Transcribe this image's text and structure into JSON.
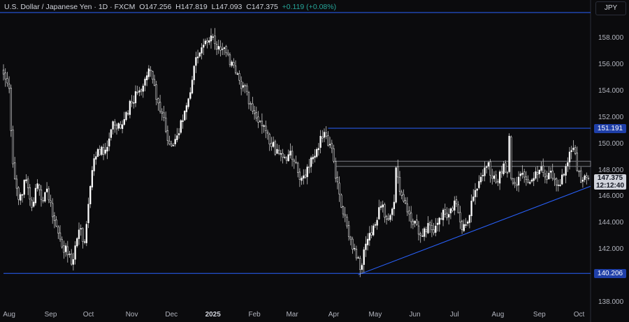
{
  "header": {
    "symbol": "U.S. Dollar / Japanese Yen · 1D · FXCM",
    "o_label": "O",
    "o_value": "147.256",
    "h_label": "H",
    "h_value": "147.819",
    "l_label": "L",
    "l_value": "147.093",
    "c_label": "C",
    "c_value": "147.375",
    "change": "+0.119 (+0.08%)"
  },
  "currency_button": "JPY",
  "colors": {
    "up": "#ffffff",
    "down": "#ffffff",
    "level_line": "#2962ff",
    "zone_line": "#9598a1",
    "background": "#0b0b0d"
  },
  "chart_data": {
    "type": "candlestick",
    "ylim": [
      137.5,
      159.5
    ],
    "y_ticks": [
      {
        "value": 158,
        "label": "158.000"
      },
      {
        "value": 156,
        "label": "156.000"
      },
      {
        "value": 154,
        "label": "154.000"
      },
      {
        "value": 152,
        "label": "152.000"
      },
      {
        "value": 150,
        "label": "150.000"
      },
      {
        "value": 148,
        "label": "148.000"
      },
      {
        "value": 146,
        "label": "146.000"
      },
      {
        "value": 144,
        "label": "144.000"
      },
      {
        "value": 142,
        "label": "142.000"
      },
      {
        "value": 140,
        "label": "140.000"
      },
      {
        "value": 138,
        "label": "138.000"
      }
    ],
    "x_ticks": [
      {
        "label": "Aug",
        "bar": 3
      },
      {
        "label": "Sep",
        "bar": 25
      },
      {
        "label": "Oct",
        "bar": 45
      },
      {
        "label": "Nov",
        "bar": 68
      },
      {
        "label": "Dec",
        "bar": 89
      },
      {
        "label": "2025",
        "bar": 111,
        "bold": true
      },
      {
        "label": "Feb",
        "bar": 133
      },
      {
        "label": "Mar",
        "bar": 153
      },
      {
        "label": "Apr",
        "bar": 175
      },
      {
        "label": "May",
        "bar": 197
      },
      {
        "label": "Jun",
        "bar": 218
      },
      {
        "label": "Jul",
        "bar": 239
      },
      {
        "label": "Aug",
        "bar": 262
      },
      {
        "label": "Sep",
        "bar": 284
      },
      {
        "label": "Oct",
        "bar": 305
      }
    ],
    "key_points": [
      [
        0,
        155.3
      ],
      [
        3,
        154.2
      ],
      [
        5,
        148.5
      ],
      [
        8,
        145.8
      ],
      [
        12,
        147.3
      ],
      [
        15,
        145.2
      ],
      [
        18,
        147.0
      ],
      [
        20,
        145.8
      ],
      [
        23,
        146.6
      ],
      [
        27,
        144.2
      ],
      [
        30,
        142.8
      ],
      [
        34,
        141.6
      ],
      [
        36,
        140.9
      ],
      [
        38,
        142.3
      ],
      [
        40,
        143.5
      ],
      [
        43,
        142.6
      ],
      [
        46,
        146.8
      ],
      [
        48,
        148.9
      ],
      [
        50,
        149.6
      ],
      [
        53,
        149.2
      ],
      [
        56,
        150.4
      ],
      [
        58,
        151.7
      ],
      [
        62,
        151.2
      ],
      [
        65,
        152.4
      ],
      [
        68,
        153.1
      ],
      [
        71,
        153.9
      ],
      [
        74,
        154.4
      ],
      [
        77,
        155.7
      ],
      [
        79,
        154.9
      ],
      [
        82,
        153.1
      ],
      [
        85,
        152.0
      ],
      [
        88,
        150.0
      ],
      [
        90,
        149.9
      ],
      [
        93,
        150.8
      ],
      [
        96,
        152.5
      ],
      [
        99,
        153.9
      ],
      [
        101,
        155.9
      ],
      [
        103,
        156.6
      ],
      [
        105,
        157.3
      ],
      [
        107,
        157.8
      ],
      [
        110,
        158.2
      ],
      [
        112,
        157.6
      ],
      [
        114,
        157.4
      ],
      [
        116,
        157.2
      ],
      [
        118,
        156.9
      ],
      [
        120,
        156.0
      ],
      [
        123,
        155.4
      ],
      [
        126,
        154.2
      ],
      [
        128,
        154.4
      ],
      [
        131,
        153.0
      ],
      [
        133,
        152.3
      ],
      [
        136,
        151.7
      ],
      [
        139,
        151.0
      ],
      [
        142,
        149.8
      ],
      [
        145,
        149.6
      ],
      [
        148,
        149.0
      ],
      [
        151,
        149.2
      ],
      [
        154,
        148.7
      ],
      [
        157,
        147.3
      ],
      [
        159,
        147.6
      ],
      [
        162,
        148.2
      ],
      [
        164,
        149.0
      ],
      [
        166,
        149.6
      ],
      [
        168,
        150.6
      ],
      [
        170,
        150.9
      ],
      [
        172,
        149.9
      ],
      [
        174,
        149.7
      ],
      [
        176,
        147.4
      ],
      [
        178,
        146.2
      ],
      [
        180,
        144.7
      ],
      [
        182,
        143.8
      ],
      [
        184,
        142.8
      ],
      [
        186,
        142.1
      ],
      [
        188,
        141.4
      ],
      [
        189,
        140.5
      ],
      [
        191,
        142.0
      ],
      [
        193,
        142.8
      ],
      [
        195,
        143.1
      ],
      [
        197,
        143.9
      ],
      [
        199,
        145.2
      ],
      [
        201,
        145.4
      ],
      [
        203,
        144.3
      ],
      [
        205,
        144.6
      ],
      [
        207,
        145.6
      ],
      [
        208,
        148.2
      ],
      [
        209,
        147.5
      ],
      [
        211,
        146.1
      ],
      [
        213,
        145.5
      ],
      [
        215,
        144.7
      ],
      [
        217,
        143.9
      ],
      [
        219,
        143.9
      ],
      [
        221,
        143.1
      ],
      [
        223,
        143.6
      ],
      [
        225,
        144.0
      ],
      [
        227,
        143.5
      ],
      [
        229,
        143.8
      ],
      [
        231,
        144.4
      ],
      [
        233,
        145.0
      ],
      [
        235,
        144.4
      ],
      [
        237,
        145.1
      ],
      [
        239,
        145.7
      ],
      [
        241,
        144.8
      ],
      [
        243,
        143.5
      ],
      [
        245,
        143.9
      ],
      [
        247,
        144.6
      ],
      [
        249,
        146.0
      ],
      [
        251,
        146.6
      ],
      [
        253,
        147.5
      ],
      [
        255,
        148.2
      ],
      [
        257,
        148.6
      ],
      [
        259,
        147.4
      ],
      [
        261,
        147.1
      ],
      [
        263,
        147.9
      ],
      [
        265,
        148.5
      ],
      [
        267,
        147.8
      ],
      [
        268,
        150.6
      ],
      [
        269,
        147.4
      ],
      [
        271,
        147.0
      ],
      [
        273,
        147.5
      ],
      [
        275,
        147.8
      ],
      [
        277,
        147.3
      ],
      [
        279,
        147.1
      ],
      [
        281,
        147.4
      ],
      [
        283,
        147.7
      ],
      [
        285,
        148.3
      ],
      [
        287,
        147.5
      ],
      [
        289,
        147.8
      ],
      [
        291,
        147.4
      ],
      [
        293,
        146.9
      ],
      [
        295,
        146.9
      ],
      [
        297,
        147.7
      ],
      [
        299,
        148.6
      ],
      [
        300,
        149.4
      ],
      [
        302,
        149.7
      ],
      [
        304,
        148.0
      ],
      [
        306,
        147.1
      ],
      [
        308,
        147.6
      ],
      [
        310,
        147.375
      ]
    ],
    "levels": [
      {
        "value": 151.191,
        "label": "151.191",
        "from_bar": 172
      },
      {
        "value": 140.206,
        "label": "140.206",
        "from_bar": 0
      }
    ],
    "resistance_zone": {
      "top": 148.7,
      "bottom": 148.3,
      "from_bar": 176
    },
    "trendline": {
      "from": [
        188,
        140.1
      ],
      "to": [
        323,
        146.8
      ]
    },
    "last_price": {
      "value": 147.375,
      "label": "147.375",
      "countdown": "12:12:40"
    }
  }
}
